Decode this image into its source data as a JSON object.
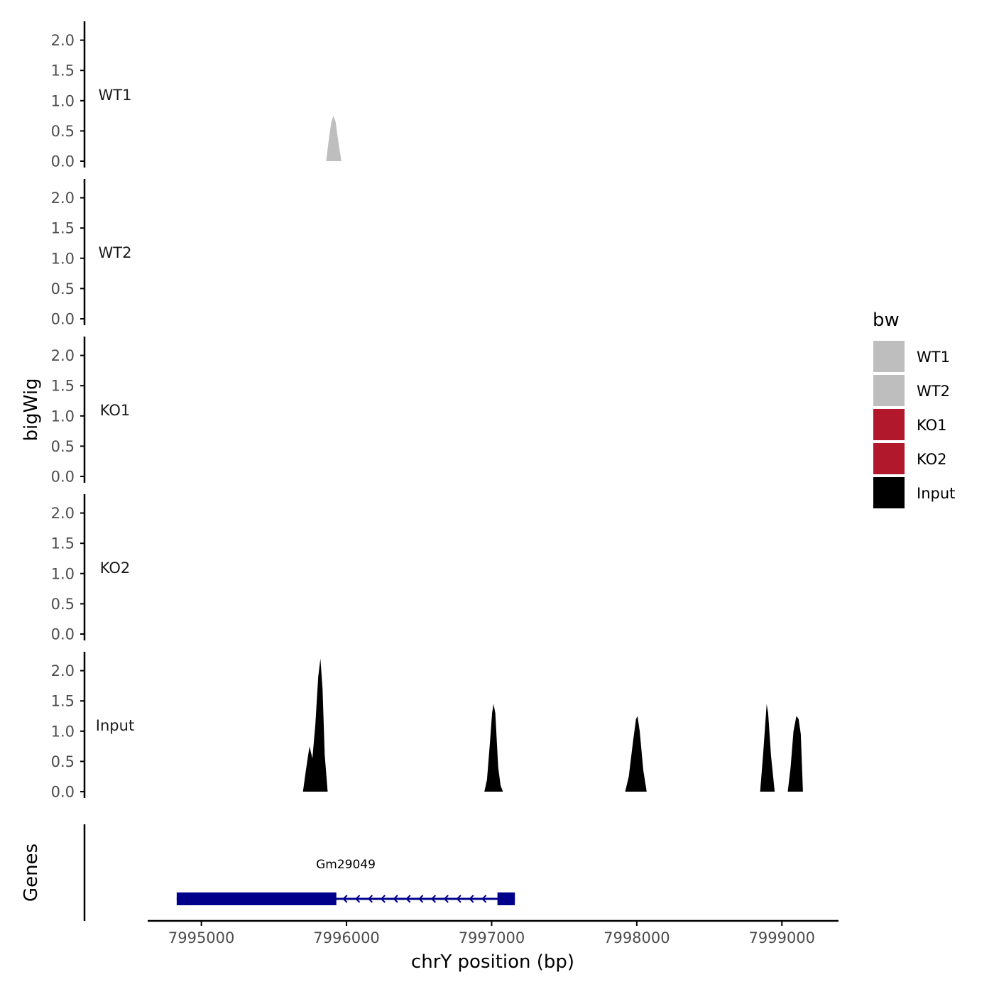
{
  "chart_data": {
    "type": "area",
    "ylabel": "bigWig",
    "xlabel": "chrY position (bp)",
    "genes_label": "Genes",
    "x_ticks": [
      7995000,
      7996000,
      7997000,
      7998000,
      7999000
    ],
    "x_tick_labels": [
      "7995000",
      "7996000",
      "7997000",
      "7998000",
      "7999000"
    ],
    "xlim": [
      7994630,
      7999390
    ],
    "ylim": [
      0,
      2.3
    ],
    "y_ticks": [
      0.0,
      0.5,
      1.0,
      1.5,
      2.0
    ],
    "y_tick_labels": [
      "0.0",
      "0.5",
      "1.0",
      "1.5",
      "2.0"
    ],
    "tracks": [
      {
        "name": "WT1",
        "color": "#bebebe",
        "points": [
          [
            7995700,
            0
          ],
          [
            7995860,
            0
          ],
          [
            7995875,
            0.3
          ],
          [
            7995895,
            0.65
          ],
          [
            7995910,
            0.75
          ],
          [
            7995925,
            0.65
          ],
          [
            7995945,
            0.3
          ],
          [
            7995965,
            0
          ],
          [
            7999390,
            0
          ]
        ]
      },
      {
        "name": "WT2",
        "color": "#bebebe",
        "points": []
      },
      {
        "name": "KO1",
        "color": "#b2182b",
        "points": []
      },
      {
        "name": "KO2",
        "color": "#b2182b",
        "points": []
      },
      {
        "name": "Input",
        "color": "#000000",
        "points": [
          [
            7995690,
            0
          ],
          [
            7995700,
            0
          ],
          [
            7995720,
            0.35
          ],
          [
            7995745,
            0.75
          ],
          [
            7995765,
            0.55
          ],
          [
            7995785,
            1.1
          ],
          [
            7995805,
            1.9
          ],
          [
            7995820,
            2.2
          ],
          [
            7995835,
            1.7
          ],
          [
            7995850,
            0.6
          ],
          [
            7995870,
            0
          ],
          [
            7996950,
            0
          ],
          [
            7996968,
            0.2
          ],
          [
            7996988,
            0.8
          ],
          [
            7997003,
            1.3
          ],
          [
            7997013,
            1.45
          ],
          [
            7997025,
            1.3
          ],
          [
            7997045,
            0.4
          ],
          [
            7997062,
            0.1
          ],
          [
            7997078,
            0
          ],
          [
            7997920,
            0
          ],
          [
            7997945,
            0.25
          ],
          [
            7997975,
            0.85
          ],
          [
            7997995,
            1.2
          ],
          [
            7998005,
            1.25
          ],
          [
            7998020,
            1.0
          ],
          [
            7998045,
            0.35
          ],
          [
            7998068,
            0
          ],
          [
            7998850,
            0
          ],
          [
            7998870,
            0.6
          ],
          [
            7998895,
            1.45
          ],
          [
            7998905,
            1.3
          ],
          [
            7998925,
            0.6
          ],
          [
            7998950,
            0
          ],
          [
            7999040,
            0
          ],
          [
            7999060,
            0.4
          ],
          [
            7999080,
            1.0
          ],
          [
            7999100,
            1.25
          ],
          [
            7999115,
            1.2
          ],
          [
            7999130,
            0.95
          ],
          [
            7999145,
            0
          ],
          [
            7999390,
            0
          ]
        ]
      }
    ],
    "legend": {
      "title": "bw",
      "entries": [
        {
          "label": "WT1",
          "color": "#bebebe"
        },
        {
          "label": "WT2",
          "color": "#bebebe"
        },
        {
          "label": "KO1",
          "color": "#b2182b"
        },
        {
          "label": "KO2",
          "color": "#b2182b"
        },
        {
          "label": "Input",
          "color": "#000000"
        }
      ]
    },
    "genes": [
      {
        "name": "Gm29049",
        "start": 7994830,
        "end": 7997160,
        "strand": "-",
        "exons": [
          [
            7994830,
            7995930
          ],
          [
            7997040,
            7997160
          ]
        ],
        "color": "#00008b"
      }
    ]
  }
}
